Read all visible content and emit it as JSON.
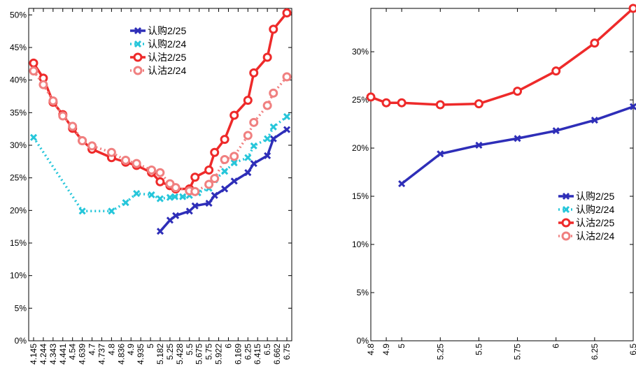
{
  "chart_data": [
    {
      "type": "line",
      "x_tick_labels": [
        "4.145",
        "4.244",
        "4.343",
        "4.441",
        "4.54",
        "4.639",
        "4.7",
        "4.737",
        "4.8",
        "4.836",
        "4.9",
        "4.935",
        "5",
        "5.182",
        "5.25",
        "5.428",
        "5.5",
        "5.675",
        "5.75",
        "5.922",
        "6",
        "6.169",
        "6.25",
        "6.415",
        "6.5",
        "6.662",
        "6.75"
      ],
      "y_tick_labels": [
        "0%",
        "5%",
        "10%",
        "15%",
        "20%",
        "25%",
        "30%",
        "35%",
        "40%",
        "45%",
        "50%"
      ],
      "ylim": [
        0,
        51
      ],
      "grid": false,
      "legend": "top-right",
      "series": [
        {
          "name": "认购2/25",
          "color": "#2e2eb8",
          "style": "solid",
          "marker": "x",
          "x": [
            5.182,
            5.25,
            5.355,
            5.5,
            5.6,
            5.75,
            5.85,
            5.97,
            6.1,
            6.25,
            6.35,
            6.5,
            6.6,
            6.75
          ],
          "y": [
            16.8,
            18.5,
            19.2,
            19.9,
            20.7,
            21.1,
            22.3,
            23.3,
            24.5,
            25.8,
            27.2,
            28.4,
            31.0,
            32.4
          ]
        },
        {
          "name": "认购2/24",
          "color": "#26c6da",
          "style": "dotted",
          "marker": "x",
          "x": [
            4.145,
            4.639,
            4.8,
            4.865,
            4.92,
            5.02,
            5.18,
            5.25,
            5.34,
            5.45,
            5.5,
            5.65,
            5.75,
            5.85,
            5.97,
            6.1,
            6.25,
            6.35,
            6.5,
            6.6,
            6.75
          ],
          "y": [
            31.2,
            19.9,
            19.9,
            21.2,
            22.6,
            22.4,
            21.8,
            22.0,
            22.1,
            22.1,
            22.3,
            22.7,
            23.4,
            24.7,
            26.0,
            27.3,
            28.1,
            29.9,
            31.0,
            32.8,
            34.4
          ]
        },
        {
          "name": "认沽2/25",
          "color": "#ee2a2a",
          "style": "solid",
          "marker": "o",
          "x": [
            4.145,
            4.244,
            4.343,
            4.441,
            4.54,
            4.639,
            4.7,
            4.8,
            4.865,
            4.92,
            5.02,
            5.18,
            5.25,
            5.355,
            5.5,
            5.6,
            5.75,
            5.85,
            5.97,
            6.1,
            6.25,
            6.35,
            6.5,
            6.6,
            6.75
          ],
          "y": [
            42.6,
            40.3,
            36.6,
            34.7,
            32.6,
            30.7,
            29.4,
            28.1,
            27.4,
            26.9,
            25.8,
            24.4,
            23.8,
            23.3,
            23.3,
            25.1,
            26.2,
            28.9,
            30.9,
            34.6,
            36.9,
            41.1,
            43.5,
            47.8,
            50.3
          ]
        },
        {
          "name": "认沽2/24",
          "color": "#f08080",
          "style": "dotted",
          "marker": "o",
          "x": [
            4.145,
            4.244,
            4.343,
            4.441,
            4.54,
            4.639,
            4.7,
            4.8,
            4.865,
            4.92,
            5.02,
            5.18,
            5.25,
            5.355,
            5.5,
            5.6,
            5.75,
            5.85,
            5.97,
            6.1,
            6.25,
            6.35,
            6.5,
            6.6,
            6.75
          ],
          "y": [
            41.4,
            39.3,
            36.8,
            34.5,
            32.9,
            30.7,
            29.9,
            28.9,
            27.7,
            27.2,
            26.2,
            25.8,
            24.1,
            23.5,
            23.0,
            22.9,
            24.0,
            24.9,
            27.8,
            28.3,
            31.5,
            33.5,
            36.1,
            38.0,
            40.5
          ]
        }
      ]
    },
    {
      "type": "line",
      "x": [
        4.8,
        4.9,
        5,
        5.25,
        5.5,
        5.75,
        6,
        6.25,
        6.5
      ],
      "x_tick_labels": [
        "4.8",
        "4.9",
        "5",
        "5.25",
        "5.5",
        "5.75",
        "6",
        "6.25",
        "6.5"
      ],
      "y_tick_labels": [
        "0%",
        "5%",
        "10%",
        "15%",
        "20%",
        "25%",
        "30%"
      ],
      "ylim": [
        0,
        34.5
      ],
      "grid": false,
      "legend": "right",
      "series": [
        {
          "name": "认购2/25",
          "color": "#2e2eb8",
          "style": "solid",
          "marker": "x",
          "values": [
            null,
            null,
            16.3,
            19.4,
            20.3,
            21.0,
            21.8,
            22.9,
            24.3
          ]
        },
        {
          "name": "认购2/24",
          "color": "#26c6da",
          "style": "dotted",
          "marker": "x",
          "values": [
            null,
            null,
            null,
            null,
            null,
            null,
            null,
            null,
            null
          ]
        },
        {
          "name": "认沽2/25",
          "color": "#ee2a2a",
          "style": "solid",
          "marker": "o",
          "values": [
            25.3,
            24.7,
            24.7,
            24.5,
            24.6,
            25.9,
            28.0,
            30.9,
            34.5
          ]
        },
        {
          "name": "认沽2/24",
          "color": "#f08080",
          "style": "dotted",
          "marker": "o",
          "values": [
            null,
            null,
            null,
            null,
            null,
            null,
            null,
            null,
            null
          ]
        }
      ]
    }
  ]
}
